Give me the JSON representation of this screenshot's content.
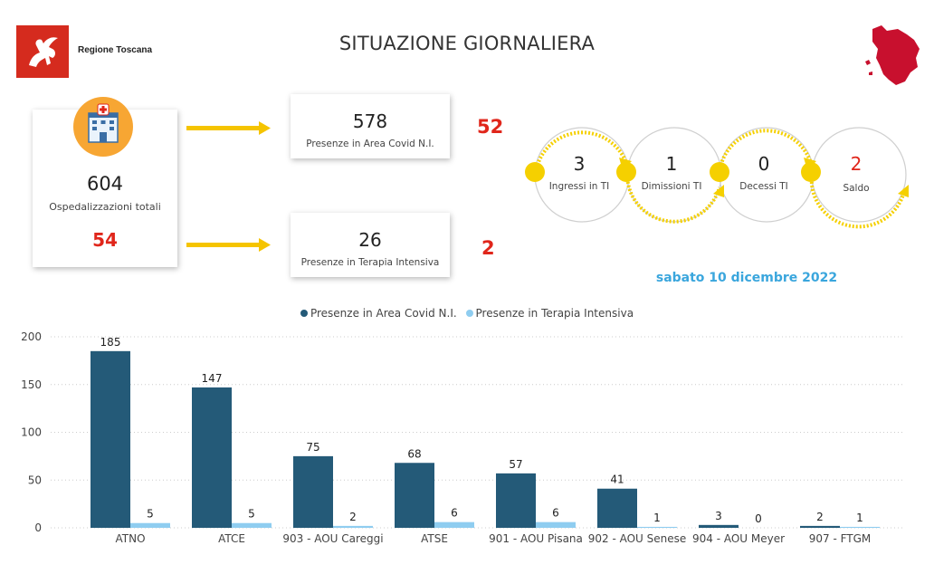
{
  "header": {
    "logo_text": "Regione Toscana",
    "title": "SITUAZIONE GIORNALIERA"
  },
  "summary": {
    "total_value": "604",
    "total_label": "Ospedalizzazioni totali",
    "total_delta": "54",
    "covid_value": "578",
    "covid_label": "Presenze in Area Covid N.I.",
    "covid_delta": "52",
    "ti_value": "26",
    "ti_label": "Presenze in Terapia Intensiva",
    "ti_delta": "2"
  },
  "icu_flow": [
    {
      "value": "3",
      "label": "Ingressi in TI"
    },
    {
      "value": "1",
      "label": "Dimissioni TI"
    },
    {
      "value": "0",
      "label": "Decessi TI"
    },
    {
      "value": "2",
      "label": "Saldo"
    }
  ],
  "date": "sabato 10 dicembre 2022",
  "colors": {
    "series_covid": "#245a78",
    "series_ti": "#8fcdf0",
    "accent_red": "#e0261b",
    "accent_yellow": "#f5d000",
    "date_blue": "#3aa6dd"
  },
  "chart_data": {
    "type": "bar",
    "categories": [
      "ATNO",
      "ATCE",
      "903 - AOU Careggi",
      "ATSE",
      "901 - AOU Pisana",
      "902 - AOU Senese",
      "904 - AOU Meyer",
      "907 - FTGM"
    ],
    "series": [
      {
        "name": "Presenze in Area Covid N.I.",
        "values": [
          185,
          147,
          75,
          68,
          57,
          41,
          3,
          2
        ]
      },
      {
        "name": "Presenze in Terapia Intensiva",
        "values": [
          5,
          5,
          2,
          6,
          6,
          1,
          0,
          1
        ]
      }
    ],
    "yticks": [
      0,
      50,
      100,
      150,
      200
    ],
    "ylim": [
      0,
      200
    ],
    "grid": true,
    "legend": "top-center",
    "data_labels": true
  }
}
